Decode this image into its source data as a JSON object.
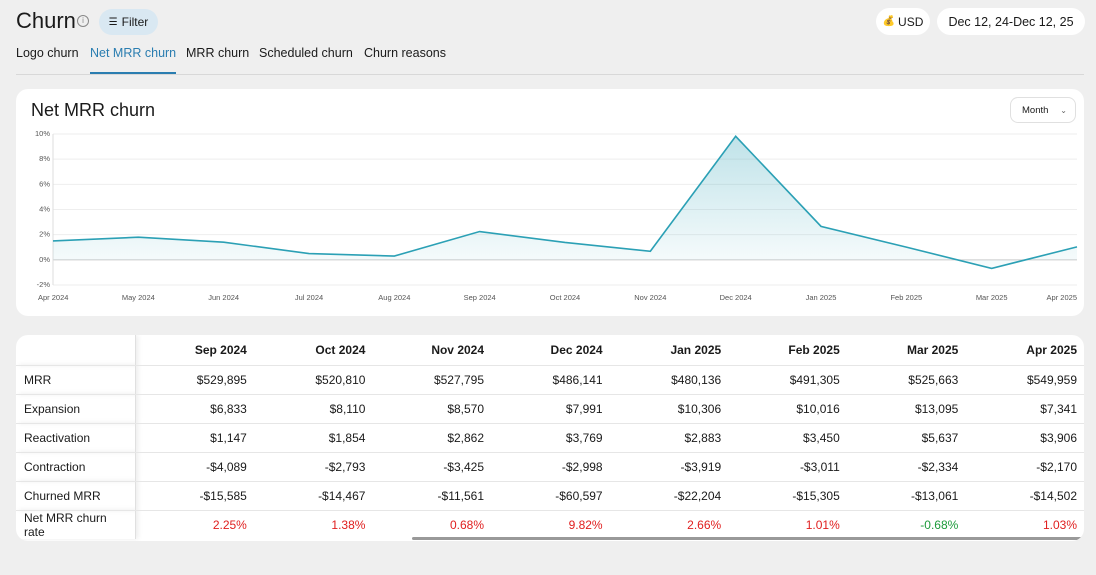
{
  "header": {
    "title": "Churn",
    "filter": "Filter",
    "currency": "USD",
    "date_start": "Dec 12, 24",
    "date_separator": "-",
    "date_end": "Dec 12, 25"
  },
  "tabs": {
    "items": [
      "Logo churn",
      "Net MRR churn",
      "MRR churn",
      "Scheduled churn",
      "Churn reasons"
    ],
    "active": 1
  },
  "chart_card": {
    "title": "Net MRR churn",
    "period": "Month"
  },
  "chart_data": {
    "type": "area",
    "x": [
      "Apr 2024",
      "May 2024",
      "Jun 2024",
      "Jul 2024",
      "Aug 2024",
      "Sep 2024",
      "Oct 2024",
      "Nov 2024",
      "Dec 2024",
      "Jan 2025",
      "Feb 2025",
      "Mar 2025",
      "Apr 2025"
    ],
    "values": [
      1.5,
      1.8,
      1.4,
      0.5,
      0.3,
      2.25,
      1.38,
      0.68,
      9.82,
      2.66,
      1.01,
      -0.68,
      1.03
    ],
    "color": "#2ba0b5",
    "ylim": [
      -2,
      10
    ],
    "yticks": [
      {
        "value": -2,
        "label": "-2%"
      },
      {
        "value": 0,
        "label": "0%"
      },
      {
        "value": 2,
        "label": "2%"
      },
      {
        "value": 4,
        "label": "4%"
      },
      {
        "value": 6,
        "label": "6%"
      },
      {
        "value": 8,
        "label": "8%"
      },
      {
        "value": 10,
        "label": "10%"
      }
    ],
    "grid": true
  },
  "table": {
    "columns": [
      "Sep 2024",
      "Oct 2024",
      "Nov 2024",
      "Dec 2024",
      "Jan 2025",
      "Feb 2025",
      "Mar 2025",
      "Apr 2025"
    ],
    "rows": [
      {
        "label": "MRR",
        "cells": [
          "$529,895",
          "$520,810",
          "$527,795",
          "$486,141",
          "$480,136",
          "$491,305",
          "$525,663",
          "$549,959"
        ]
      },
      {
        "label": "Expansion",
        "cells": [
          "$6,833",
          "$8,110",
          "$8,570",
          "$7,991",
          "$10,306",
          "$10,016",
          "$13,095",
          "$7,341"
        ]
      },
      {
        "label": "Reactivation",
        "cells": [
          "$1,147",
          "$1,854",
          "$2,862",
          "$3,769",
          "$2,883",
          "$3,450",
          "$5,637",
          "$3,906"
        ]
      },
      {
        "label": "Contraction",
        "cells": [
          "-$4,089",
          "-$2,793",
          "-$3,425",
          "-$2,998",
          "-$3,919",
          "-$3,011",
          "-$2,334",
          "-$2,170"
        ]
      },
      {
        "label": "Churned MRR",
        "cells": [
          "-$15,585",
          "-$14,467",
          "-$11,561",
          "-$60,597",
          "-$22,204",
          "-$15,305",
          "-$13,061",
          "-$14,502"
        ]
      },
      {
        "label": "Net MRR churn rate",
        "cells": [
          "2.25%",
          "1.38%",
          "0.68%",
          "9.82%",
          "2.66%",
          "1.01%",
          "-0.68%",
          "1.03%"
        ]
      }
    ]
  }
}
